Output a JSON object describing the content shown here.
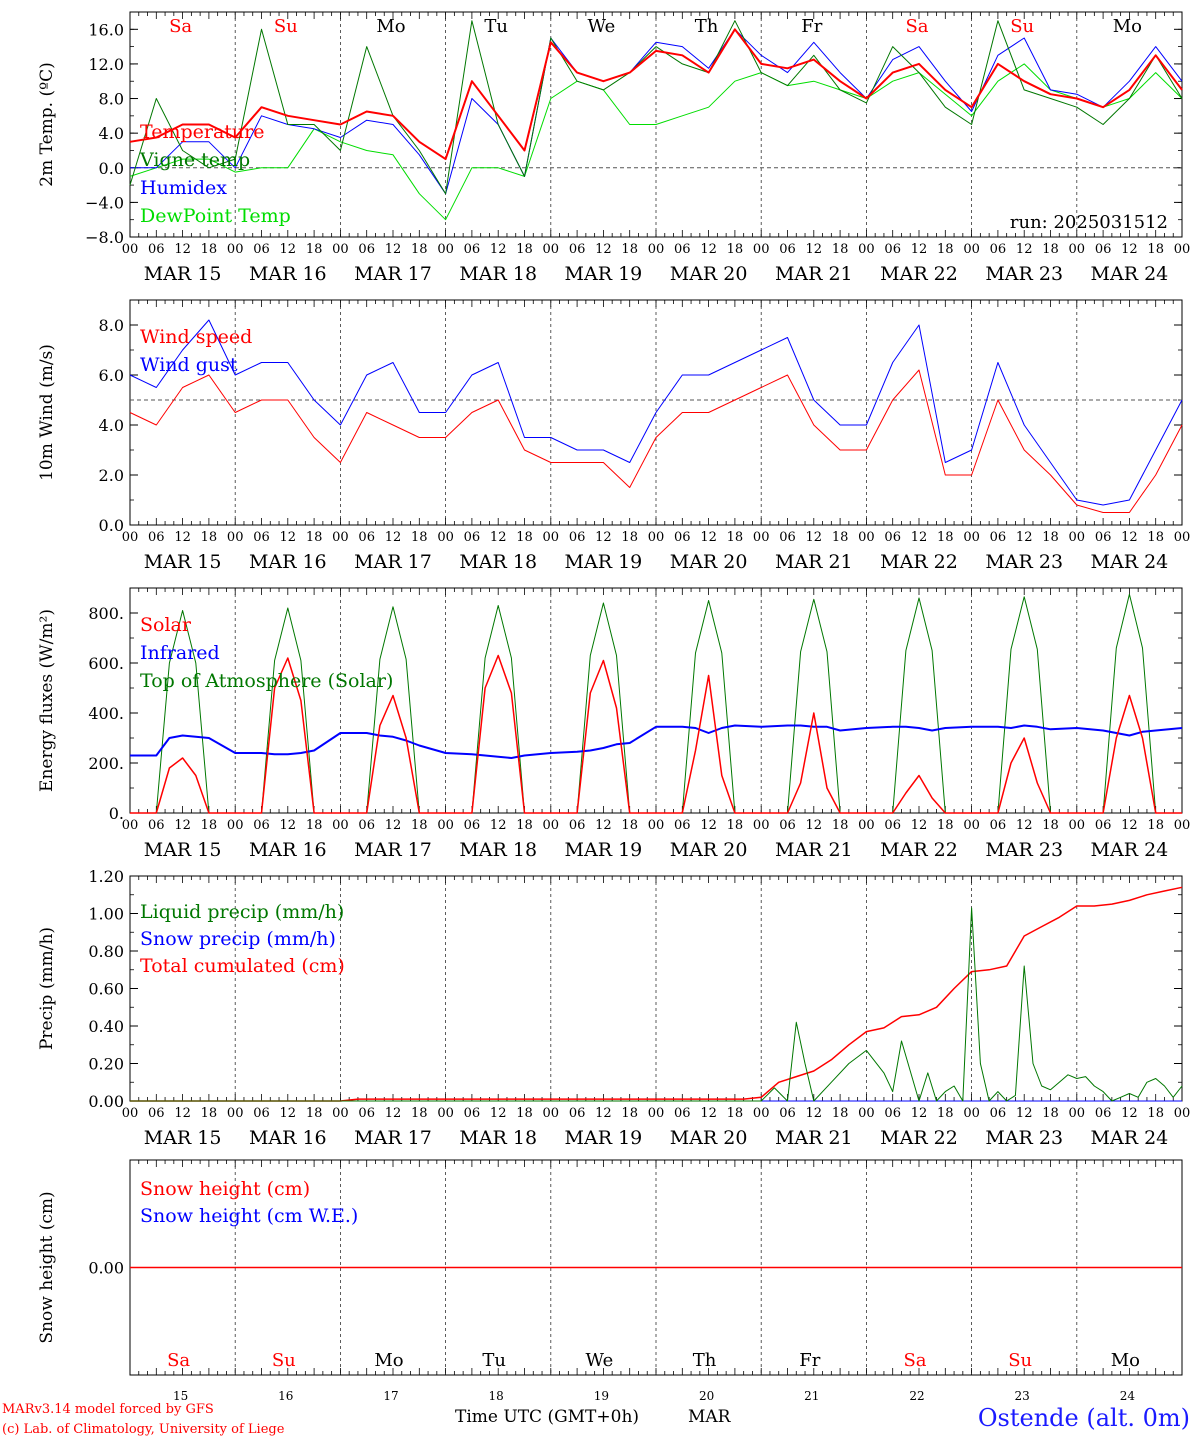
{
  "meta": {
    "run_label": "run: 2025031512",
    "credit_line1": "MARv3.14 model forced by GFS",
    "credit_line2": "(c) Lab. of Climatology, University of Liege",
    "location": "Ostende (alt. 0m)",
    "x_axis_title": "Time UTC (GMT+0h)",
    "x_axis_month": "MAR"
  },
  "days": {
    "weekday_labels": [
      "Sa",
      "Su",
      "Mo",
      "Tu",
      "We",
      "Th",
      "Fr",
      "Sa",
      "Su",
      "Mo"
    ],
    "weekday_colors": [
      "#ff0000",
      "#ff0000",
      "#000000",
      "#000000",
      "#000000",
      "#000000",
      "#000000",
      "#ff0000",
      "#ff0000",
      "#000000"
    ],
    "date_labels": [
      "MAR 15",
      "MAR 16",
      "MAR 17",
      "MAR 18",
      "MAR 19",
      "MAR 20",
      "MAR 21",
      "MAR 22",
      "MAR 23",
      "MAR 24"
    ],
    "day_numbers": [
      "15",
      "16",
      "17",
      "18",
      "19",
      "20",
      "21",
      "22",
      "23",
      "24"
    ],
    "hour_ticks": [
      "00",
      "06",
      "12",
      "18"
    ],
    "final_tick": "00"
  },
  "chart_data": [
    {
      "id": "temp",
      "type": "line",
      "ylabel": "2m Temp. (ºC)",
      "ylim": [
        -8,
        18
      ],
      "yticks": [
        -8,
        -4,
        0,
        4,
        8,
        12,
        16
      ],
      "ytick_labels": [
        "−8.0",
        "−4.0",
        "0.0",
        "4.0",
        "8.0",
        "12.0",
        "16.0"
      ],
      "ref_line": 0,
      "x_hours": [
        0,
        6,
        12,
        18,
        24,
        30,
        36,
        42,
        48,
        54,
        60,
        66,
        72,
        78,
        84,
        90,
        96,
        102,
        108,
        114,
        120,
        126,
        132,
        138,
        144,
        150,
        156,
        162,
        168,
        174,
        180,
        186,
        192,
        198,
        204,
        210,
        216,
        222,
        228,
        234,
        240
      ],
      "series": [
        {
          "name": "Temperature",
          "color": "#ff0000",
          "width": 2,
          "values": [
            3,
            3.5,
            5,
            5,
            3.5,
            7,
            6,
            5.5,
            5,
            6.5,
            6,
            3,
            1,
            10,
            6,
            2,
            14.5,
            11,
            10,
            11,
            13.5,
            13,
            11,
            16,
            12,
            11.5,
            12.5,
            10,
            8,
            11,
            12,
            9,
            7,
            12,
            10,
            8.5,
            8,
            7,
            9,
            13,
            9
          ]
        },
        {
          "name": "Vigne temp",
          "color": "#007700",
          "width": 1,
          "values": [
            -2,
            8,
            2,
            0,
            1,
            16,
            5,
            5,
            2,
            14,
            6,
            2,
            -3,
            17,
            5,
            -1,
            15,
            10,
            9,
            11,
            14,
            12,
            11,
            17,
            11,
            9.5,
            13,
            9,
            7.5,
            14,
            11,
            7,
            5,
            17,
            9,
            8,
            7,
            5,
            8,
            13,
            8
          ]
        },
        {
          "name": "Humidex",
          "color": "#0000ff",
          "width": 1,
          "values": [
            0,
            0,
            3,
            3,
            0,
            6,
            5,
            4.5,
            3.5,
            5.5,
            5,
            1.5,
            -3,
            8,
            5,
            -1,
            15,
            11,
            10,
            11,
            14.5,
            14,
            11.5,
            16,
            13,
            11,
            14.5,
            11,
            8,
            12.5,
            14,
            10,
            6.5,
            13,
            15,
            9,
            8.5,
            7,
            10,
            14,
            10
          ]
        },
        {
          "name": "DewPoint Temp",
          "color": "#00dd00",
          "width": 1,
          "values": [
            -1,
            0,
            1,
            1,
            -0.5,
            0,
            0,
            4.5,
            3,
            2,
            1.5,
            -3,
            -6,
            0,
            0,
            -1,
            8,
            10,
            9,
            5,
            5,
            6,
            7,
            10,
            11,
            9.5,
            10,
            9,
            8,
            10,
            11,
            8.5,
            6,
            10,
            12,
            9,
            8,
            7,
            8,
            11,
            8
          ]
        }
      ]
    },
    {
      "id": "wind",
      "type": "line",
      "ylabel": "10m Wind (m/s)",
      "ylim": [
        0,
        9
      ],
      "yticks": [
        0,
        2,
        4,
        6,
        8
      ],
      "ytick_labels": [
        "0.0",
        "2.0",
        "4.0",
        "6.0",
        "8.0"
      ],
      "ref_line": 5,
      "x_hours": [
        0,
        6,
        12,
        18,
        24,
        30,
        36,
        42,
        48,
        54,
        60,
        66,
        72,
        78,
        84,
        90,
        96,
        102,
        108,
        114,
        120,
        126,
        132,
        138,
        144,
        150,
        156,
        162,
        168,
        174,
        180,
        186,
        192,
        198,
        204,
        210,
        216,
        222,
        228,
        234,
        240
      ],
      "series": [
        {
          "name": "Wind speed",
          "color": "#ff0000",
          "width": 1,
          "values": [
            4.5,
            4,
            5.5,
            6,
            4.5,
            5,
            5,
            3.5,
            2.5,
            4.5,
            4,
            3.5,
            3.5,
            4.5,
            5,
            3,
            2.5,
            2.5,
            2.5,
            1.5,
            3.5,
            4.5,
            4.5,
            5,
            5.5,
            6,
            4,
            3,
            3,
            5,
            6.2,
            2,
            2,
            5,
            3,
            2,
            0.8,
            0.5,
            0.5,
            2,
            4
          ]
        },
        {
          "name": "Wind gust",
          "color": "#0000ff",
          "width": 1,
          "values": [
            6,
            5.5,
            7,
            8.2,
            6,
            6.5,
            6.5,
            5,
            4,
            6,
            6.5,
            4.5,
            4.5,
            6,
            6.5,
            3.5,
            3.5,
            3,
            3,
            2.5,
            4.5,
            6,
            6,
            6.5,
            7,
            7.5,
            5,
            4,
            4,
            6.5,
            8,
            2.5,
            3,
            6.5,
            4,
            2.5,
            1,
            0.8,
            1,
            3,
            5
          ]
        }
      ]
    },
    {
      "id": "flux",
      "type": "line",
      "ylabel": "Energy fluxes (W/m²)",
      "ylim": [
        0,
        900
      ],
      "yticks": [
        0,
        200,
        400,
        600,
        800
      ],
      "ytick_labels": [
        "0.",
        "200.",
        "400.",
        "600.",
        "800."
      ],
      "x_hours": [
        0,
        6,
        9,
        12,
        15,
        18,
        24,
        30,
        33,
        36,
        39,
        42,
        48,
        54,
        57,
        60,
        63,
        66,
        72,
        78,
        81,
        84,
        87,
        90,
        96,
        102,
        105,
        108,
        111,
        114,
        120,
        126,
        129,
        132,
        135,
        138,
        144,
        150,
        153,
        156,
        159,
        162,
        168,
        174,
        177,
        180,
        183,
        186,
        192,
        198,
        201,
        204,
        207,
        210,
        216,
        222,
        225,
        228,
        231,
        234,
        240
      ],
      "series": [
        {
          "name": "Solar",
          "color": "#ff0000",
          "width": 1.5,
          "values": [
            0,
            0,
            180,
            220,
            150,
            0,
            0,
            0,
            500,
            620,
            450,
            0,
            0,
            0,
            350,
            470,
            300,
            0,
            0,
            0,
            500,
            630,
            480,
            0,
            0,
            0,
            480,
            610,
            420,
            0,
            0,
            0,
            250,
            550,
            150,
            0,
            0,
            0,
            120,
            400,
            100,
            0,
            0,
            0,
            80,
            150,
            60,
            0,
            0,
            0,
            200,
            300,
            120,
            0,
            0,
            0,
            300,
            470,
            300,
            0,
            0
          ]
        },
        {
          "name": "Infrared",
          "color": "#0000ff",
          "width": 2,
          "values": [
            230,
            230,
            300,
            310,
            305,
            300,
            240,
            240,
            235,
            235,
            240,
            250,
            320,
            320,
            310,
            305,
            290,
            270,
            240,
            235,
            230,
            225,
            220,
            230,
            240,
            245,
            250,
            260,
            275,
            280,
            345,
            345,
            340,
            320,
            340,
            350,
            345,
            350,
            350,
            345,
            345,
            330,
            340,
            345,
            345,
            340,
            330,
            340,
            345,
            345,
            340,
            350,
            345,
            335,
            340,
            330,
            320,
            310,
            325,
            330,
            340
          ]
        },
        {
          "name": "Top of Atmosphere (Solar)",
          "color": "#007700",
          "width": 1,
          "values": [
            0,
            0,
            600,
            810,
            600,
            0,
            0,
            0,
            610,
            820,
            610,
            0,
            0,
            0,
            615,
            825,
            615,
            0,
            0,
            0,
            620,
            830,
            620,
            0,
            0,
            0,
            630,
            840,
            630,
            0,
            0,
            0,
            640,
            850,
            640,
            0,
            0,
            0,
            645,
            855,
            645,
            0,
            0,
            0,
            650,
            860,
            650,
            0,
            0,
            0,
            655,
            865,
            655,
            0,
            0,
            0,
            660,
            875,
            660,
            0,
            0
          ]
        }
      ]
    },
    {
      "id": "precip",
      "type": "line",
      "ylabel": "Precip (mm/h)",
      "ylim": [
        0,
        1.2
      ],
      "yticks": [
        0,
        0.2,
        0.4,
        0.6,
        0.8,
        1.0,
        1.2
      ],
      "ytick_labels": [
        "0.00",
        "0.20",
        "0.40",
        "0.60",
        "0.80",
        "1.00",
        "1.20"
      ],
      "series": [
        {
          "name": "Liquid precip (mm/h)",
          "color": "#007700",
          "width": 1,
          "x_hours": [
            0,
            144,
            147,
            150,
            152,
            154,
            156,
            160,
            164,
            168,
            172,
            174,
            176,
            180,
            182,
            184,
            186,
            188,
            190,
            192,
            194,
            196,
            198,
            200,
            202,
            204,
            206,
            208,
            210,
            212,
            214,
            216,
            218,
            220,
            222,
            224,
            226,
            228,
            230,
            232,
            234,
            236,
            238,
            240
          ],
          "values": [
            0,
            0,
            0.07,
            0,
            0.42,
            0.2,
            0,
            0.1,
            0.2,
            0.27,
            0.15,
            0.05,
            0.32,
            0,
            0.15,
            0,
            0.05,
            0.08,
            0,
            1.03,
            0.2,
            0,
            0.05,
            0,
            0.03,
            0.72,
            0.2,
            0.08,
            0.06,
            0.1,
            0.14,
            0.12,
            0.13,
            0.08,
            0.05,
            0,
            0.02,
            0.04,
            0.02,
            0.1,
            0.12,
            0.08,
            0.02,
            0.08
          ]
        },
        {
          "name": "Snow precip (mm/h)",
          "color": "#0000ff",
          "width": 1,
          "x_hours": [
            0,
            240
          ],
          "values": [
            0,
            0
          ]
        },
        {
          "name": "Total cumulated (cm)",
          "color": "#ff0000",
          "width": 1.5,
          "x_hours": [
            0,
            48,
            52,
            60,
            72,
            96,
            120,
            140,
            144,
            148,
            152,
            156,
            160,
            164,
            168,
            172,
            176,
            180,
            184,
            188,
            192,
            196,
            200,
            204,
            208,
            212,
            216,
            220,
            224,
            228,
            232,
            236,
            240
          ],
          "values": [
            0,
            0,
            0.01,
            0.01,
            0.01,
            0.01,
            0.01,
            0.01,
            0.02,
            0.1,
            0.13,
            0.16,
            0.22,
            0.3,
            0.37,
            0.39,
            0.45,
            0.46,
            0.5,
            0.6,
            0.69,
            0.7,
            0.72,
            0.88,
            0.93,
            0.98,
            1.04,
            1.04,
            1.05,
            1.07,
            1.1,
            1.12,
            1.14
          ]
        }
      ]
    },
    {
      "id": "snow",
      "type": "line",
      "ylabel": "Snow height (cm)",
      "ylim": [
        -1,
        1
      ],
      "yticks": [
        0
      ],
      "ytick_labels": [
        "0.00"
      ],
      "series": [
        {
          "name": "Snow height (cm)",
          "color": "#ff0000",
          "width": 1.5,
          "x_hours": [
            0,
            240
          ],
          "values": [
            0,
            0
          ]
        },
        {
          "name": "Snow height (cm W.E.)",
          "color": "#0000ff",
          "width": 1,
          "x_hours": [
            0,
            240
          ],
          "values": [
            0,
            0
          ]
        }
      ]
    }
  ]
}
